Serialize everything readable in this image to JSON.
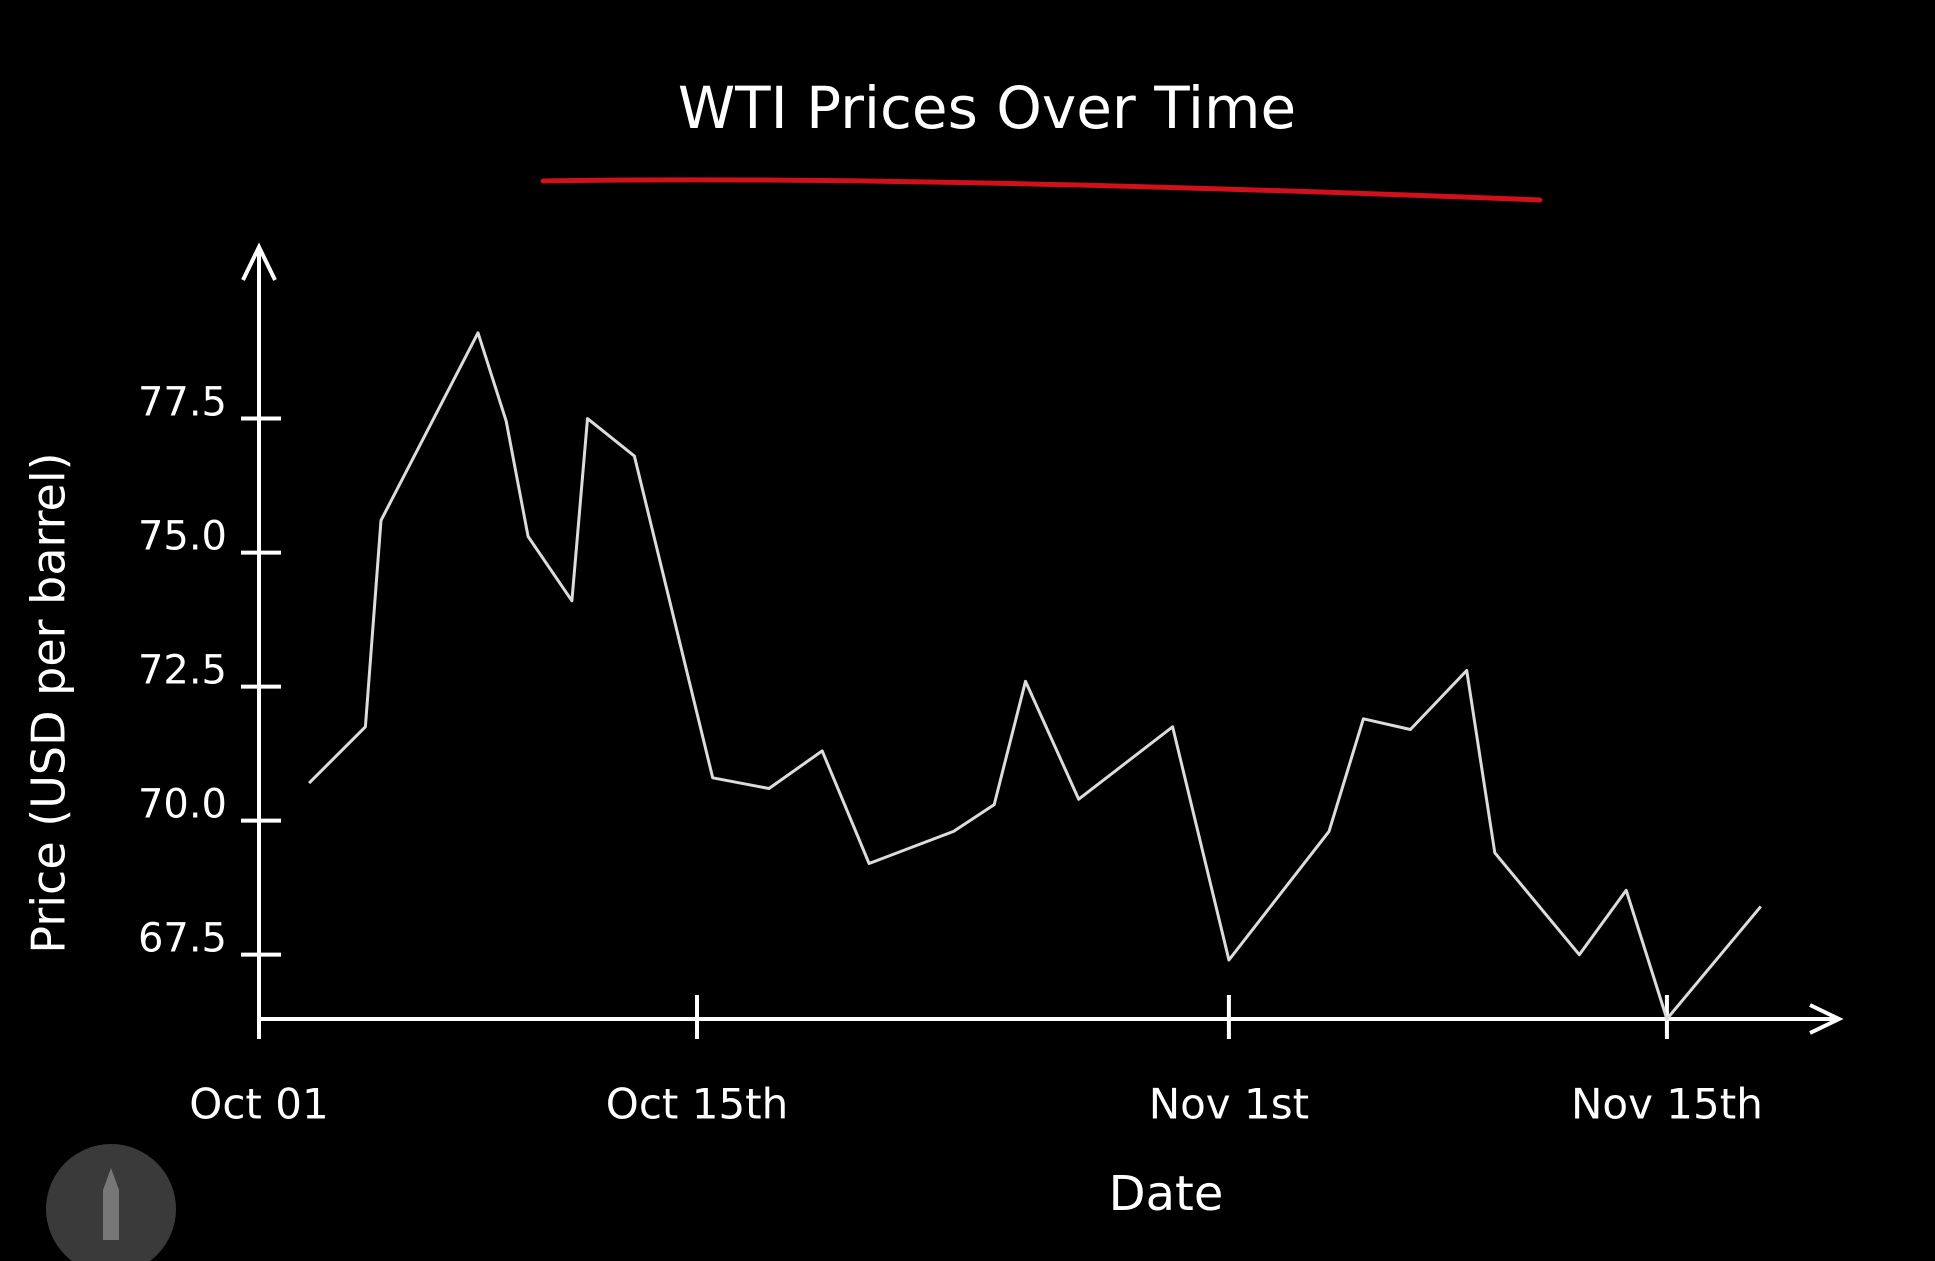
{
  "chart_data": {
    "type": "line",
    "title": "WTI Prices Over Time",
    "xlabel": "Date",
    "ylabel": "Price (USD per barrel)",
    "x": [
      2.6,
      4.4,
      4.9,
      8.0,
      8.9,
      9.6,
      11.0,
      11.5,
      13.0,
      15.5,
      17.3,
      19.0,
      20.5,
      23.2,
      24.5,
      25.5,
      27.2,
      30.2,
      32,
      35.2,
      36.3,
      37.8,
      39.6,
      40.5,
      43.2,
      44.7,
      46,
      49.0
    ],
    "values": [
      70.7,
      71.75,
      75.6,
      79.1,
      77.45,
      75.3,
      74.1,
      77.5,
      76.8,
      70.8,
      70.6,
      71.3,
      69.2,
      69.8,
      70.3,
      72.6,
      70.4,
      71.75,
      67.4,
      69.8,
      71.9,
      71.7,
      72.8,
      69.4,
      67.5,
      68.7,
      66.3,
      68.4
    ],
    "color": "#dcdcdc",
    "xlim": [
      1,
      51.5
    ],
    "xticks": [
      {
        "value": 1,
        "label": "Oct 01"
      },
      {
        "value": 15,
        "label": "Oct 15th"
      },
      {
        "value": 32,
        "label": "Nov 1st"
      },
      {
        "value": 46,
        "label": "Nov 15th"
      }
    ],
    "ylim": [
      66.3,
      80.7
    ],
    "yticks": [
      67.5,
      {
        "value": 70,
        "label": "70.0"
      },
      72.5,
      {
        "value": 75,
        "label": "75.0"
      },
      77.5
    ],
    "grid": false
  }
}
